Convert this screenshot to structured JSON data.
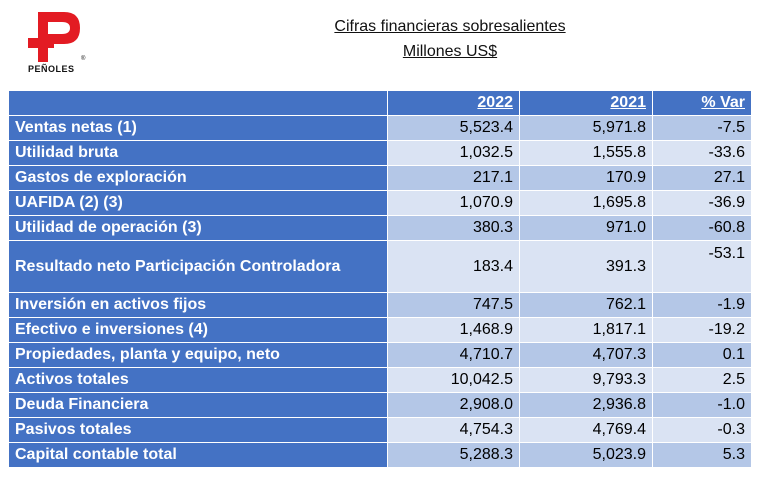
{
  "logo": {
    "text": "PEÑOLES",
    "mark": "®"
  },
  "header": {
    "title": "Cifras financieras sobresalientes",
    "subtitle": "Millones US$"
  },
  "table": {
    "columns": [
      "",
      "2022",
      "2021",
      "% Var"
    ],
    "rows": [
      {
        "label": "Ventas netas (1)",
        "y2022": "5,523.4",
        "y2021": "5,971.8",
        "var": "-7.5"
      },
      {
        "label": "Utilidad bruta",
        "y2022": "1,032.5",
        "y2021": "1,555.8",
        "var": "-33.6"
      },
      {
        "label": "Gastos de exploración",
        "y2022": "217.1",
        "y2021": "170.9",
        "var": "27.1"
      },
      {
        "label": "UAFIDA (2) (3)",
        "y2022": "1,070.9",
        "y2021": "1,695.8",
        "var": "-36.9"
      },
      {
        "label": "Utilidad de operación (3)",
        "y2022": "380.3",
        "y2021": "971.0",
        "var": "-60.8"
      },
      {
        "label": "Resultado neto Participación Controladora",
        "y2022": "183.4",
        "y2021": "391.3",
        "var": "-53.1"
      },
      {
        "label": "Inversión en activos fijos",
        "y2022": "747.5",
        "y2021": "762.1",
        "var": "-1.9"
      },
      {
        "label": "Efectivo e inversiones (4)",
        "y2022": "1,468.9",
        "y2021": "1,817.1",
        "var": "-19.2"
      },
      {
        "label": "Propiedades, planta y equipo, neto",
        "y2022": "4,710.7",
        "y2021": "4,707.3",
        "var": "0.1"
      },
      {
        "label": "Activos totales",
        "y2022": "10,042.5",
        "y2021": "9,793.3",
        "var": "2.5"
      },
      {
        "label": "Deuda Financiera",
        "y2022": "2,908.0",
        "y2021": "2,936.8",
        "var": "-1.0"
      },
      {
        "label": "Pasivos totales",
        "y2022": "4,754.3",
        "y2021": "4,769.4",
        "var": "-0.3"
      },
      {
        "label": "Capital contable total",
        "y2022": "5,288.3",
        "y2021": "5,023.9",
        "var": "5.3"
      }
    ]
  },
  "colors": {
    "header_blue": "#4472c4",
    "row_dark": "#b4c7e7",
    "row_light": "#dae3f3",
    "logo_red": "#e31b23"
  }
}
